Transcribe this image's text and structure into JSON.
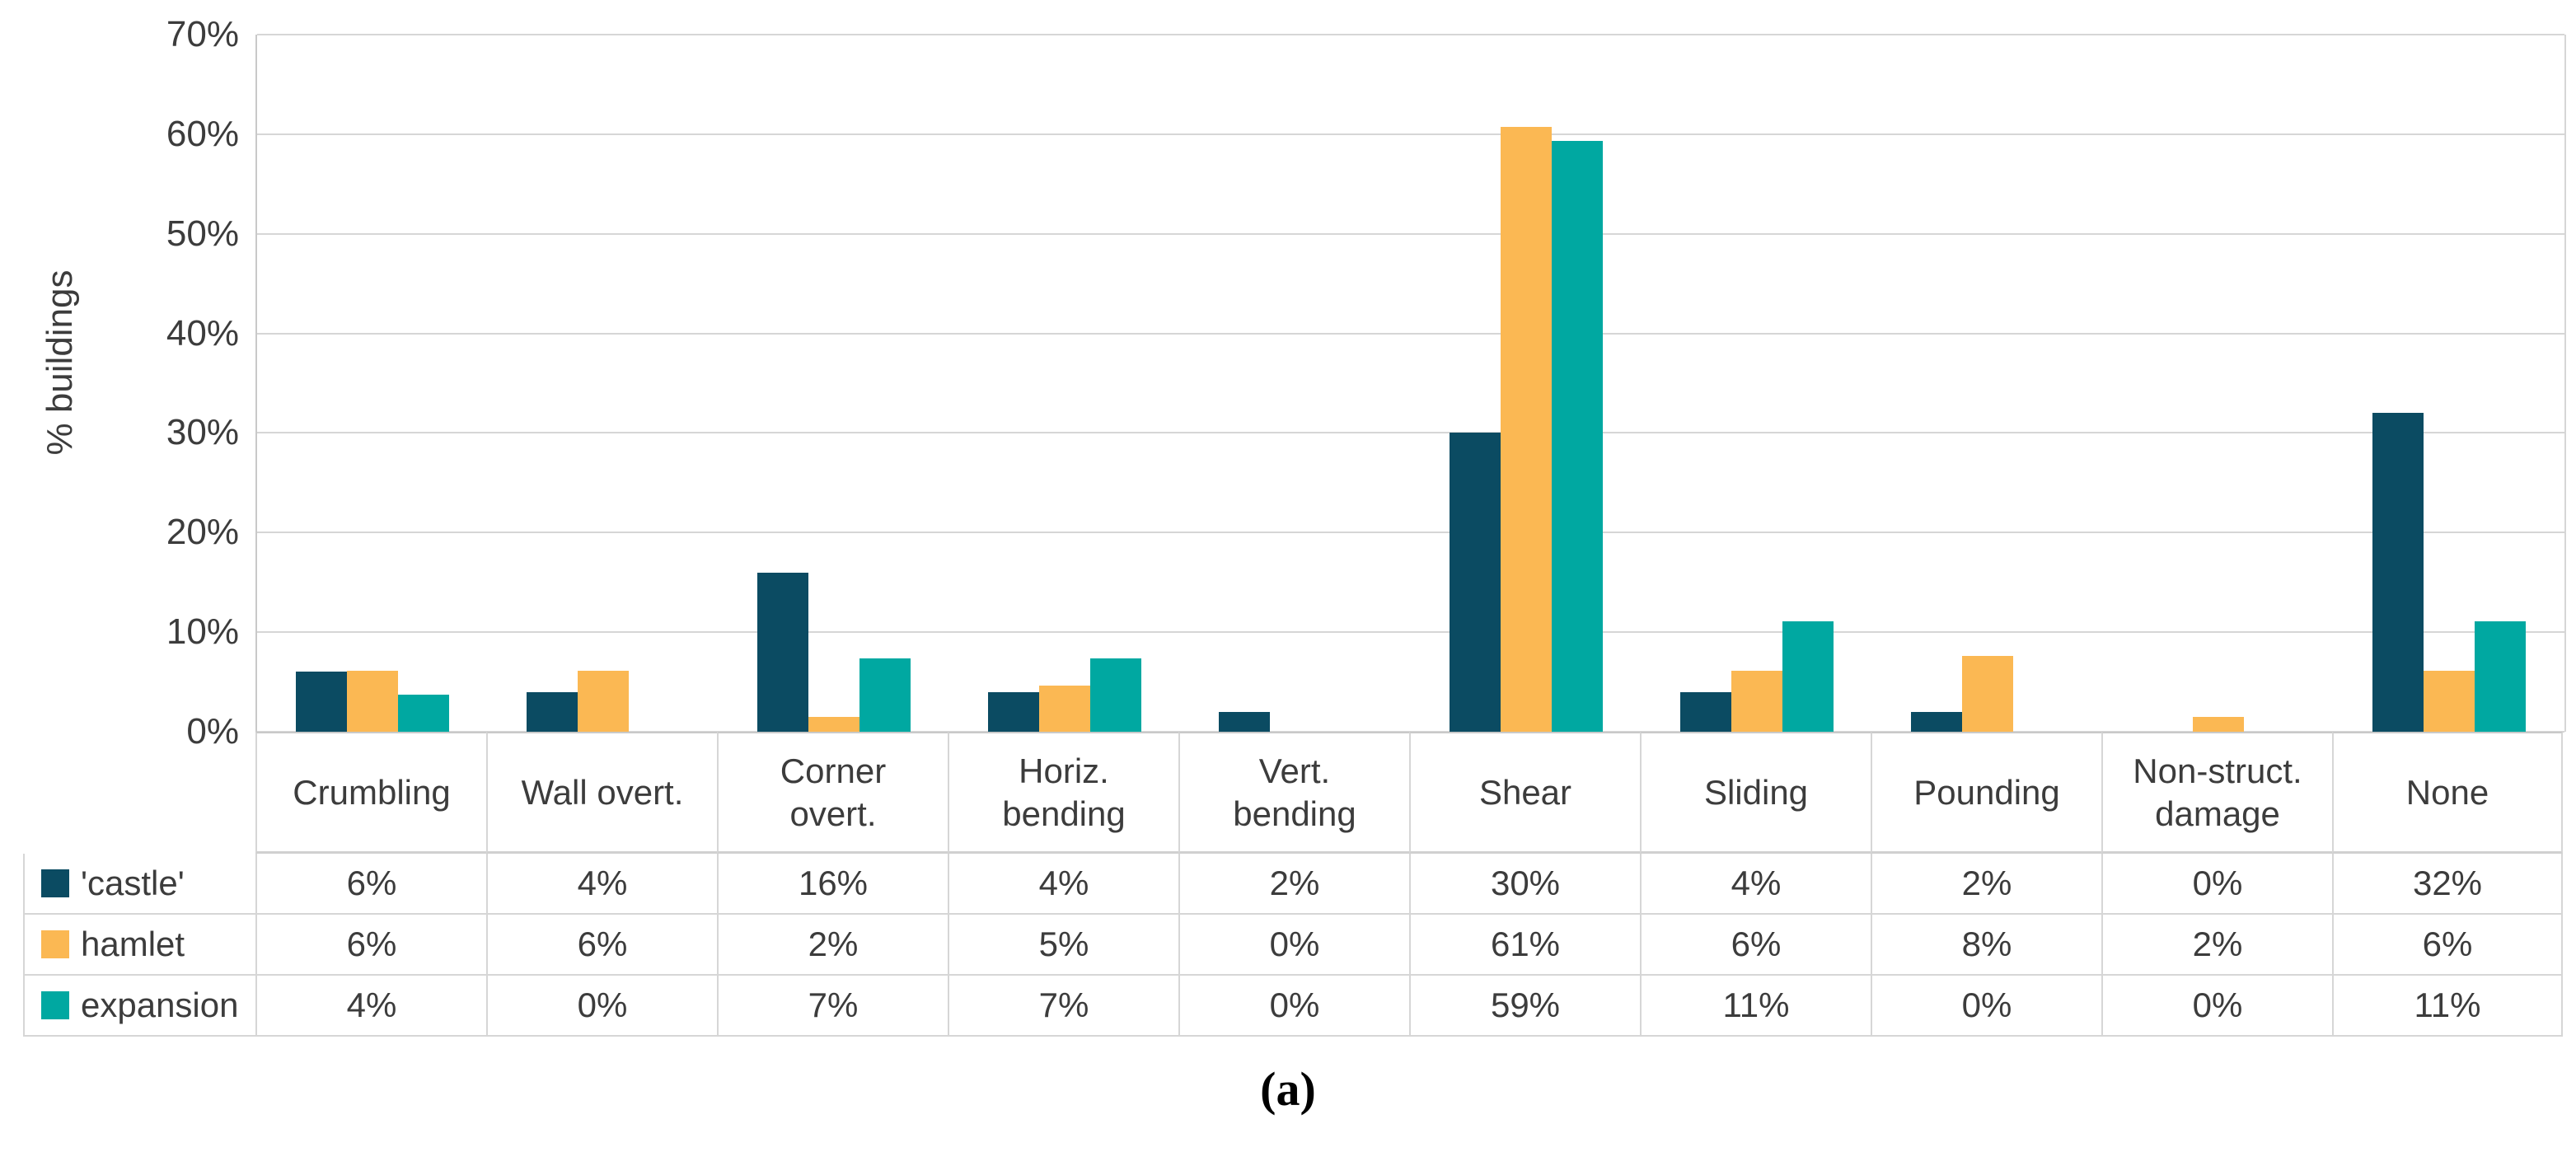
{
  "caption": "(a)",
  "chart_data": {
    "type": "bar",
    "title": "",
    "xlabel": "",
    "ylabel": "% buildings",
    "ylim_pct": [
      0,
      70
    ],
    "ytick_labels": [
      "70%",
      "60%",
      "50%",
      "40%",
      "30%",
      "20%",
      "10%",
      "0%"
    ],
    "grid": true,
    "legend_position": "table-left",
    "categories": [
      "Crumbling",
      "Wall overt.",
      "Corner overt.",
      "Horiz. bending",
      "Vert. bending",
      "Shear",
      "Sliding",
      "Pounding",
      "Non-struct. damage",
      "None"
    ],
    "series": [
      {
        "name": "'castle'",
        "color": "#0b4b62",
        "table_labels": [
          "6%",
          "4%",
          "16%",
          "4%",
          "2%",
          "30%",
          "4%",
          "2%",
          "0%",
          "32%"
        ],
        "bar_values_pct": [
          6,
          4,
          16,
          4,
          2,
          30,
          4,
          2,
          0,
          32
        ]
      },
      {
        "name": "hamlet",
        "color": "#fbb853",
        "table_labels": [
          "6%",
          "6%",
          "2%",
          "5%",
          "0%",
          "61%",
          "6%",
          "8%",
          "2%",
          "6%"
        ],
        "bar_values_pct": [
          6.1,
          6.1,
          1.5,
          4.6,
          0,
          60.7,
          6.1,
          7.6,
          1.5,
          6.1
        ]
      },
      {
        "name": "expansion",
        "color": "#00a8a1",
        "table_labels": [
          "4%",
          "0%",
          "7%",
          "7%",
          "0%",
          "59%",
          "11%",
          "0%",
          "0%",
          "11%"
        ],
        "bar_values_pct": [
          3.7,
          0,
          7.4,
          7.4,
          0,
          59.3,
          11.1,
          0,
          0,
          11.1
        ]
      }
    ]
  }
}
